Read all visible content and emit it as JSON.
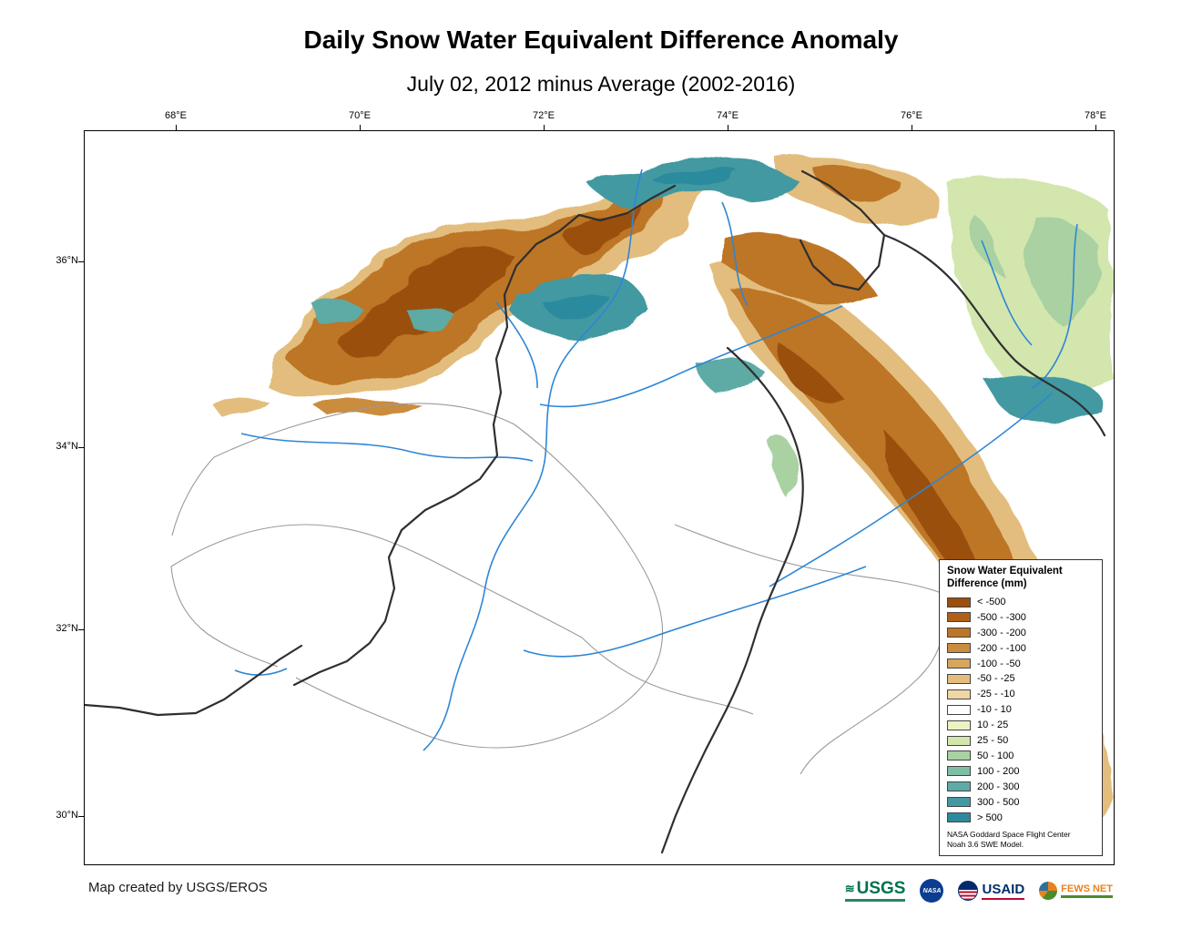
{
  "header": {
    "title": "Daily Snow Water Equivalent Difference Anomaly",
    "subtitle": "July 02, 2012 minus Average (2002-2016)"
  },
  "map": {
    "x_ticks": [
      "68°E",
      "70°E",
      "72°E",
      "74°E",
      "76°E",
      "78°E"
    ],
    "y_ticks": [
      "36°N",
      "34°N",
      "32°N",
      "30°N"
    ],
    "colors": {
      "river": "#2e86d6",
      "country_border": "#2f2f2f",
      "basin_boundary": "#9a9a9a"
    }
  },
  "legend": {
    "title_line1": "Snow Water Equivalent",
    "title_line2": "Difference (mm)",
    "entries": [
      {
        "label": "< -500",
        "color": "#9b4f10"
      },
      {
        "label": "-500 - -300",
        "color": "#b06018"
      },
      {
        "label": "-300 - -200",
        "color": "#bd7526"
      },
      {
        "label": "-200 - -100",
        "color": "#ca8c3d"
      },
      {
        "label": "-100 - -50",
        "color": "#d7a55c"
      },
      {
        "label": "-50 - -25",
        "color": "#e3bd7d"
      },
      {
        "label": "-25 - -10",
        "color": "#efd7a5"
      },
      {
        "label": "-10 - 10",
        "color": "#ffffff"
      },
      {
        "label": "10 - 25",
        "color": "#eef2c3"
      },
      {
        "label": "25 - 50",
        "color": "#d3e6ad"
      },
      {
        "label": "50 - 100",
        "color": "#a9d1a2"
      },
      {
        "label": "100 - 200",
        "color": "#7fbda4"
      },
      {
        "label": "200 - 300",
        "color": "#5daba4"
      },
      {
        "label": "300 - 500",
        "color": "#4399a1"
      },
      {
        "label": "> 500",
        "color": "#2c8a9e"
      }
    ],
    "source_line1": "NASA Goddard Space Flight Center",
    "source_line2": "Noah 3.6 SWE Model."
  },
  "footer": {
    "credit": "Map created by USGS/EROS",
    "logos": [
      {
        "name": "USGS"
      },
      {
        "name": "NASA"
      },
      {
        "name": "USAID"
      },
      {
        "name": "FEWS NET"
      }
    ]
  }
}
